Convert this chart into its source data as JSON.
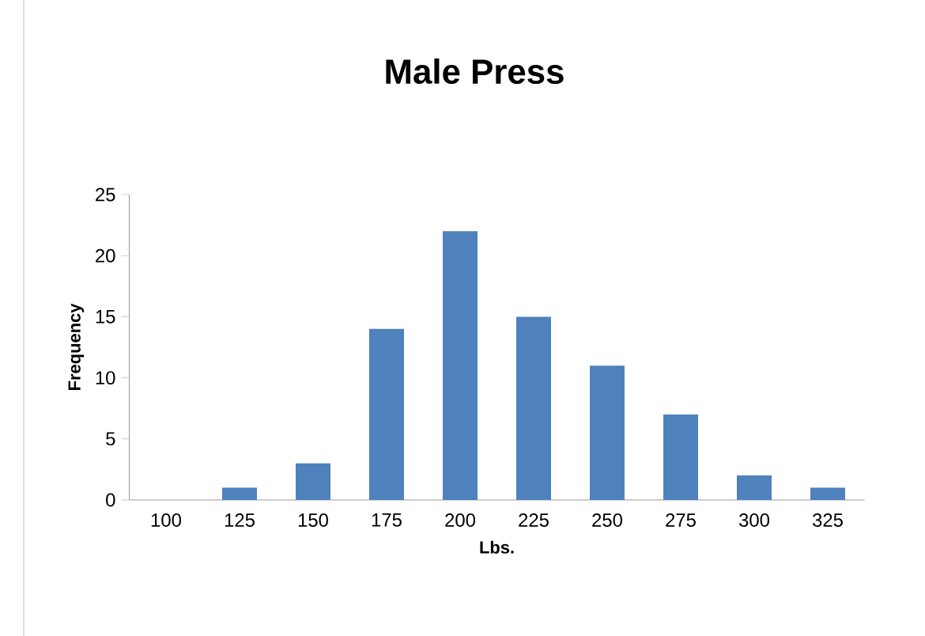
{
  "chart_data": {
    "type": "bar",
    "title": "Male Press",
    "xlabel": "Lbs.",
    "ylabel": "Frequency",
    "categories": [
      "100",
      "125",
      "150",
      "175",
      "200",
      "225",
      "250",
      "275",
      "300",
      "325"
    ],
    "values": [
      0,
      1,
      3,
      14,
      22,
      15,
      11,
      7,
      2,
      1
    ],
    "color": "#4f81bd",
    "ylim": [
      0,
      25
    ],
    "yticks": [
      0,
      5,
      10,
      15,
      20,
      25
    ]
  }
}
